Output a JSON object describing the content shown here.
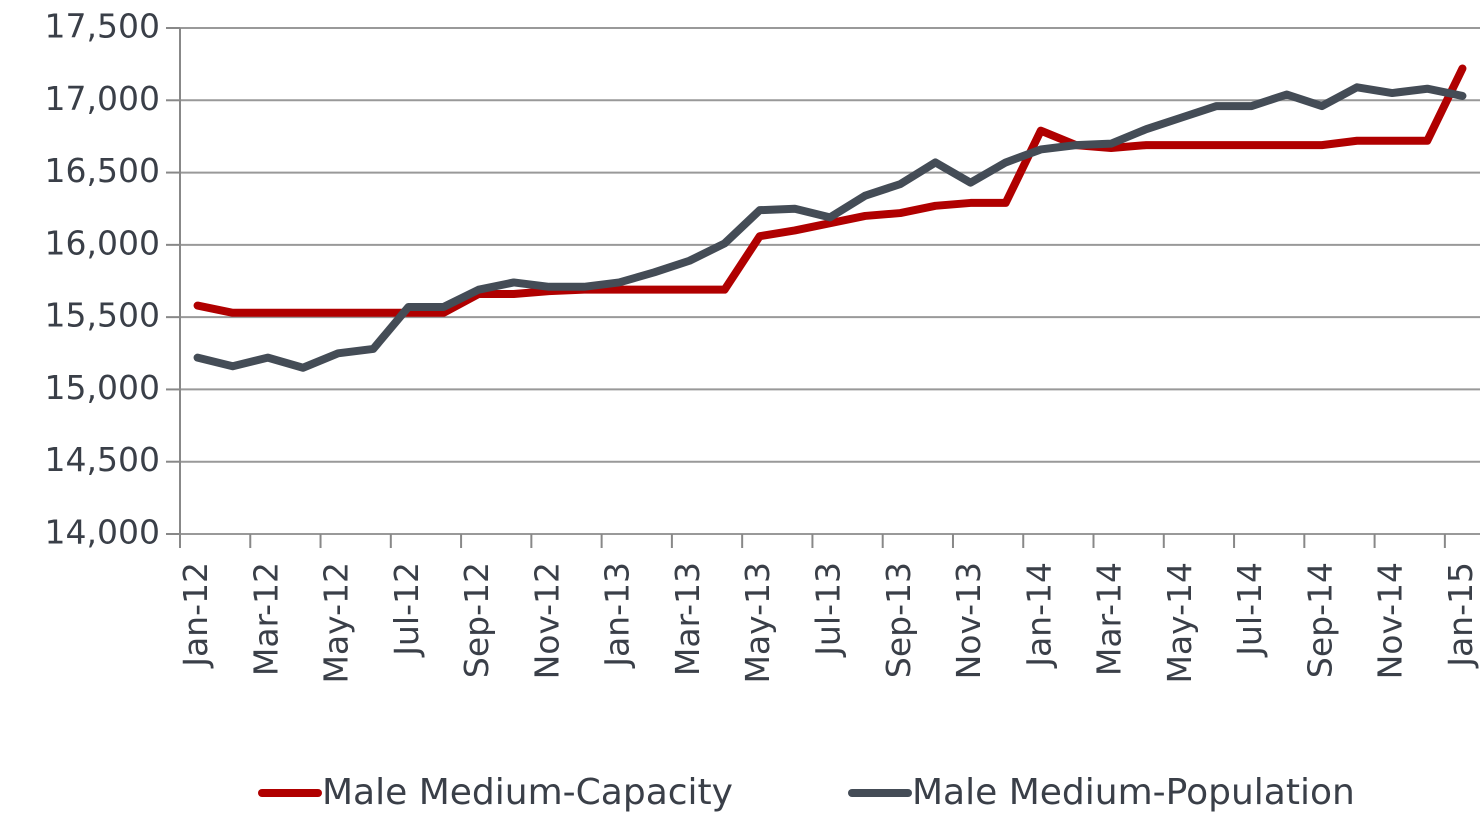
{
  "chart_data": {
    "type": "line",
    "categories": [
      "Jan-12",
      null,
      "Mar-12",
      null,
      "May-12",
      null,
      "Jul-12",
      null,
      "Sep-12",
      null,
      "Nov-12",
      null,
      "Jan-13",
      null,
      "Mar-13",
      null,
      "May-13",
      null,
      "Jul-13",
      null,
      "Sep-13",
      null,
      "Nov-13",
      null,
      "Jan-14",
      null,
      "Mar-14",
      null,
      "May-14",
      null,
      "Jul-14",
      null,
      "Sep-14",
      null,
      "Nov-14",
      null,
      "Jan-15"
    ],
    "series": [
      {
        "name": "Male Medium-Capacity",
        "color": "#b00000",
        "values": [
          15580,
          15530,
          15530,
          15530,
          15530,
          15530,
          15530,
          15530,
          15660,
          15660,
          15680,
          15690,
          15690,
          15690,
          15690,
          15690,
          16060,
          16100,
          16150,
          16200,
          16220,
          16270,
          16290,
          16290,
          16790,
          16690,
          16670,
          16690,
          16690,
          16690,
          16690,
          16690,
          16690,
          16720,
          16720,
          16720,
          17220
        ]
      },
      {
        "name": "Male Medium-Population",
        "color": "#444c56",
        "values": [
          15220,
          15160,
          15220,
          15150,
          15250,
          15280,
          15570,
          15570,
          15690,
          15740,
          15710,
          15710,
          15740,
          15810,
          15890,
          16010,
          16240,
          16250,
          16190,
          16340,
          16420,
          16570,
          16430,
          16570,
          16660,
          16690,
          16700,
          16800,
          16880,
          16960,
          16960,
          17040,
          16960,
          17090,
          17050,
          17080,
          17030
        ]
      }
    ],
    "ylim": [
      14000,
      17500
    ],
    "yticks": [
      {
        "value": 14000,
        "label": "14,000"
      },
      {
        "value": 14500,
        "label": "14,500"
      },
      {
        "value": 15000,
        "label": "15,000"
      },
      {
        "value": 15500,
        "label": "15,500"
      },
      {
        "value": 16000,
        "label": "16,000"
      },
      {
        "value": 16500,
        "label": "16,500"
      },
      {
        "value": 17000,
        "label": "17,000"
      },
      {
        "value": 17500,
        "label": "17,500"
      }
    ],
    "grid": true,
    "legend": "bottom"
  }
}
